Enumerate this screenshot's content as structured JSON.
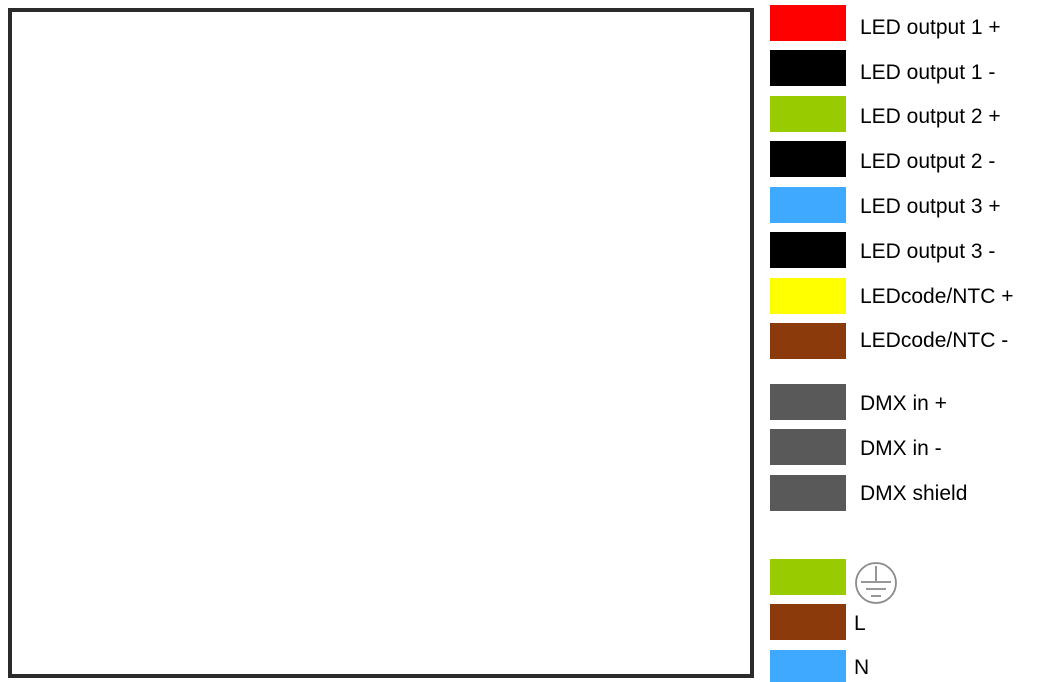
{
  "connections": [
    {
      "color": "#ff0000",
      "label": "LED output 1 +"
    },
    {
      "color": "#000000",
      "label": "LED output 1 -"
    },
    {
      "color": "#99cc00",
      "label": "LED output 2 +"
    },
    {
      "color": "#000000",
      "label": "LED output 2 -"
    },
    {
      "color": "#3fa9ff",
      "label": "LED output 3 +"
    },
    {
      "color": "#000000",
      "label": "LED output 3 -"
    },
    {
      "color": "#ffff00",
      "label": "LEDcode/NTC +"
    },
    {
      "color": "#8b3a0b",
      "label": "LEDcode/NTC -"
    },
    {
      "color": "#595959",
      "label": "DMX in +"
    },
    {
      "color": "#595959",
      "label": "DMX in -"
    },
    {
      "color": "#595959",
      "label": "DMX shield"
    }
  ],
  "mains": [
    {
      "color": "#99cc00",
      "icon": "protective-earth-icon"
    },
    {
      "color": "#8b3a0b",
      "label": "L"
    },
    {
      "color": "#3fa9ff",
      "label": "N"
    }
  ]
}
